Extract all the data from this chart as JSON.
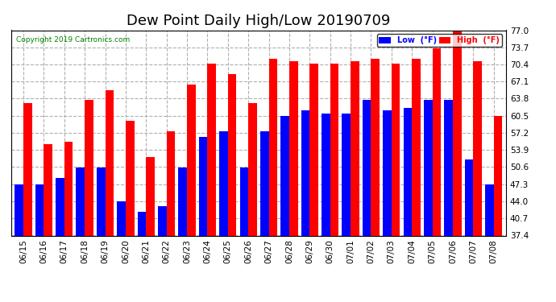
{
  "title": "Dew Point Daily High/Low 20190709",
  "copyright": "Copyright 2019 Cartronics.com",
  "dates": [
    "06/15",
    "06/16",
    "06/17",
    "06/18",
    "06/19",
    "06/20",
    "06/21",
    "06/22",
    "06/23",
    "06/24",
    "06/25",
    "06/26",
    "06/27",
    "06/28",
    "06/29",
    "06/30",
    "07/01",
    "07/02",
    "07/03",
    "07/04",
    "07/05",
    "07/06",
    "07/07",
    "07/08"
  ],
  "high": [
    63.0,
    55.0,
    55.5,
    63.5,
    65.5,
    59.5,
    52.5,
    57.5,
    66.5,
    70.5,
    68.5,
    63.0,
    71.5,
    71.0,
    70.5,
    70.5,
    71.0,
    71.5,
    70.5,
    71.5,
    73.5,
    77.0,
    71.0,
    60.5
  ],
  "low": [
    47.3,
    47.3,
    48.5,
    50.5,
    50.5,
    44.0,
    42.0,
    43.0,
    50.5,
    56.5,
    57.5,
    50.5,
    57.5,
    60.5,
    61.5,
    61.0,
    61.0,
    63.5,
    61.5,
    62.0,
    63.5,
    63.5,
    52.0,
    47.3
  ],
  "bar_width": 0.42,
  "ylim": [
    37.4,
    77.0
  ],
  "yticks": [
    37.4,
    40.7,
    44.0,
    47.3,
    50.6,
    53.9,
    57.2,
    60.5,
    63.8,
    67.1,
    70.4,
    73.7,
    77.0
  ],
  "high_color": "#ff0000",
  "low_color": "#0000ff",
  "background_color": "#ffffff",
  "plot_bg_color": "#ffffff",
  "grid_color": "#b0b0b0",
  "title_fontsize": 13,
  "tick_fontsize": 7.5,
  "legend_low_label": "Low  (°F)",
  "legend_high_label": "High  (°F)"
}
